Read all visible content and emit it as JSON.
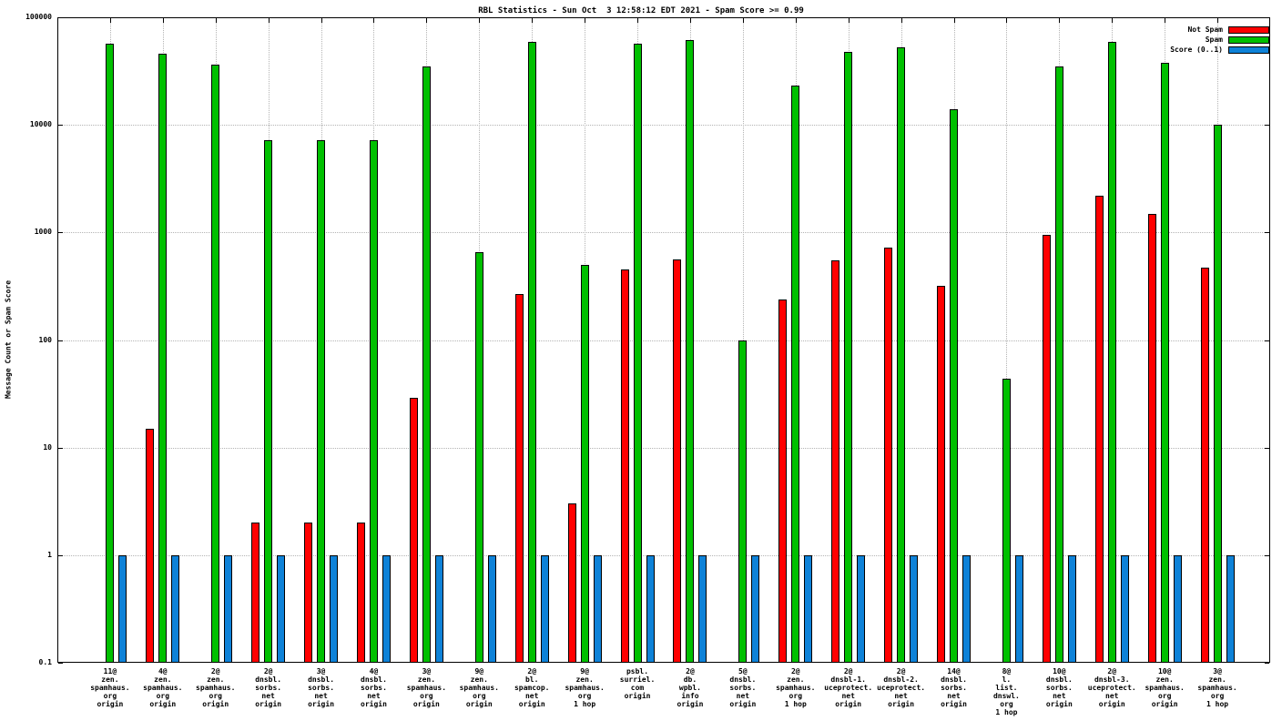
{
  "chart_data": {
    "type": "bar",
    "title": "RBL Statistics - Sun Oct  3 12:58:12 EDT 2021 - Spam Score >= 0.99",
    "ylabel": "Message Count or Spam Score",
    "yscale": "log",
    "ylim": [
      0.1,
      100000
    ],
    "yticks": [
      0.1,
      1,
      10,
      100,
      1000,
      10000,
      100000
    ],
    "ytick_labels": [
      "0.1",
      "1",
      "10",
      "100",
      "1000",
      "10000",
      "100000"
    ],
    "grid": true,
    "legend_position": "top-right",
    "colors": {
      "grid": "#b4b4b4",
      "axis": "#000000",
      "background": "#ffffff"
    },
    "categories": [
      [
        "11@",
        "zen.",
        "spamhaus.",
        "org",
        "origin"
      ],
      [
        "4@",
        "zen.",
        "spamhaus.",
        "org",
        "origin"
      ],
      [
        "2@",
        "zen.",
        "spamhaus.",
        "org",
        "origin"
      ],
      [
        "2@",
        "dnsbl.",
        "sorbs.",
        "net",
        "origin"
      ],
      [
        "3@",
        "dnsbl.",
        "sorbs.",
        "net",
        "origin"
      ],
      [
        "4@",
        "dnsbl.",
        "sorbs.",
        "net",
        "origin"
      ],
      [
        "3@",
        "zen.",
        "spamhaus.",
        "org",
        "origin"
      ],
      [
        "9@",
        "zen.",
        "spamhaus.",
        "org",
        "origin"
      ],
      [
        "2@",
        "bl.",
        "spamcop.",
        "net",
        "origin"
      ],
      [
        "9@",
        "zen.",
        "spamhaus.",
        "org",
        "1 hop"
      ],
      [
        "psbl.",
        "surriel.",
        "com",
        "origin"
      ],
      [
        "2@",
        "db.",
        "wpbl.",
        "info",
        "origin"
      ],
      [
        "5@",
        "dnsbl.",
        "sorbs.",
        "net",
        "origin"
      ],
      [
        "2@",
        "zen.",
        "spamhaus.",
        "org",
        "1 hop"
      ],
      [
        "2@",
        "dnsbl-1.",
        "uceprotect.",
        "net",
        "origin"
      ],
      [
        "2@",
        "dnsbl-2.",
        "uceprotect.",
        "net",
        "origin"
      ],
      [
        "14@",
        "dnsbl.",
        "sorbs.",
        "net",
        "origin"
      ],
      [
        "8@",
        "l.",
        "list.",
        "dnswl.",
        "org",
        "1 hop"
      ],
      [
        "10@",
        "dnsbl.",
        "sorbs.",
        "net",
        "origin"
      ],
      [
        "2@",
        "dnsbl-3.",
        "uceprotect.",
        "net",
        "origin"
      ],
      [
        "10@",
        "zen.",
        "spamhaus.",
        "org",
        "origin"
      ],
      [
        "3@",
        "zen.",
        "spamhaus.",
        "org",
        "1 hop"
      ]
    ],
    "series": [
      {
        "name": "Not Spam",
        "color": "#ff0000",
        "values": [
          0,
          15,
          0,
          2,
          2,
          2,
          29,
          0,
          270,
          3,
          450,
          560,
          0,
          240,
          550,
          720,
          320,
          0,
          950,
          2200,
          1500,
          470
        ]
      },
      {
        "name": "Spam",
        "color": "#00c000",
        "values": [
          57000,
          46000,
          36000,
          7200,
          7200,
          7200,
          35000,
          650,
          59000,
          500,
          57000,
          62000,
          100,
          23000,
          48000,
          53000,
          14000,
          44,
          35000,
          59000,
          38000,
          10000
        ]
      },
      {
        "name": "Score (0..1)",
        "color": "#0e82d8",
        "values": [
          1,
          1,
          1,
          1,
          1,
          1,
          1,
          1,
          1,
          1,
          1,
          1,
          1,
          1,
          1,
          1,
          1,
          1,
          1,
          1,
          1,
          1
        ]
      }
    ]
  }
}
